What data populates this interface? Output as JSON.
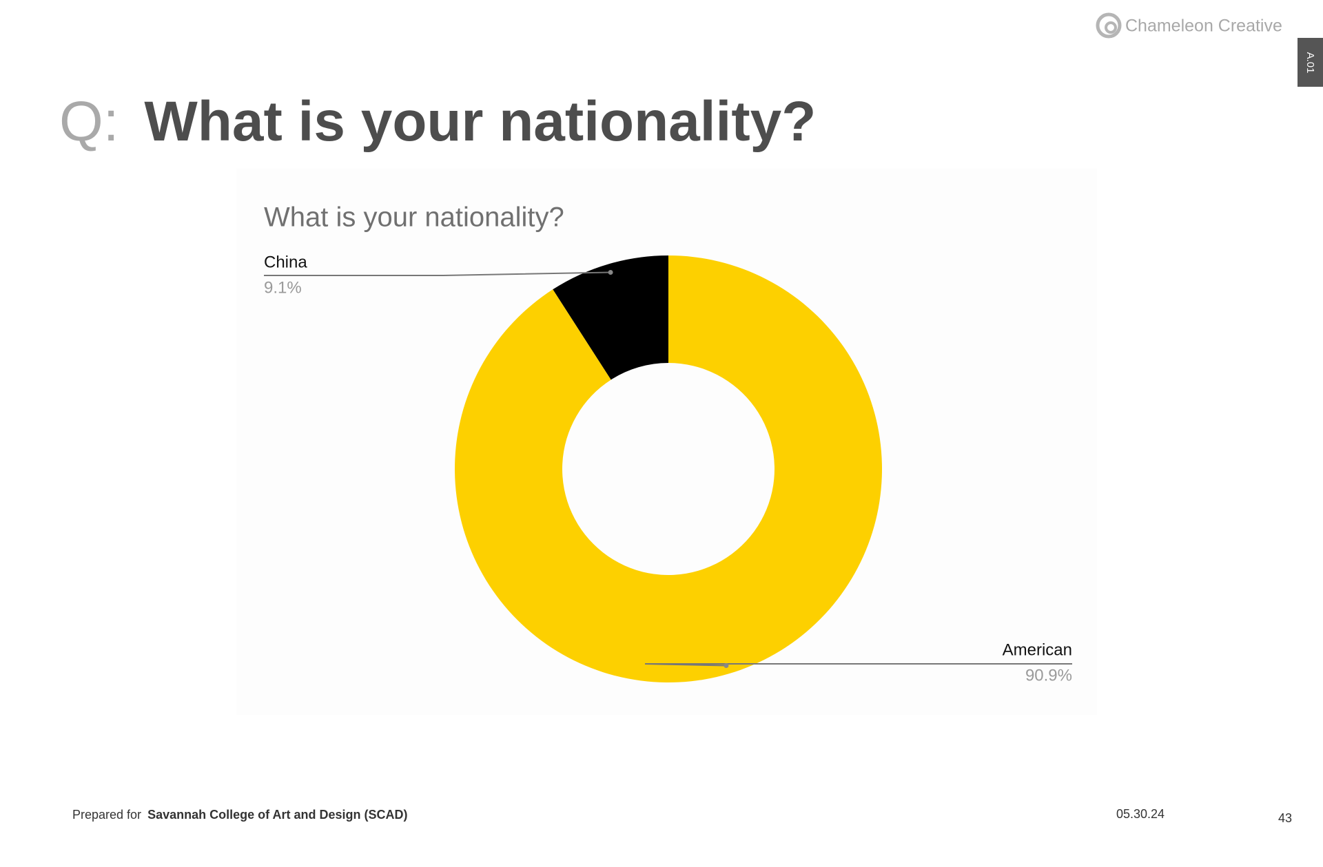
{
  "header": {
    "prefix": "Q:",
    "title": "What is your nationality?"
  },
  "logo": "Chameleon Creative",
  "tab": "A.01",
  "chart_data": {
    "type": "pie",
    "title": "What is your nationality?",
    "categories": [
      "China",
      "American"
    ],
    "values": [
      9.1,
      90.9
    ],
    "value_labels": [
      "9.1%",
      "90.9%"
    ],
    "colors": [
      "#000000",
      "#fdd000"
    ]
  },
  "footer": {
    "prepared": "Prepared for",
    "client": "Savannah College of Art and Design (SCAD)",
    "date": "05.30.24",
    "page": "43"
  }
}
